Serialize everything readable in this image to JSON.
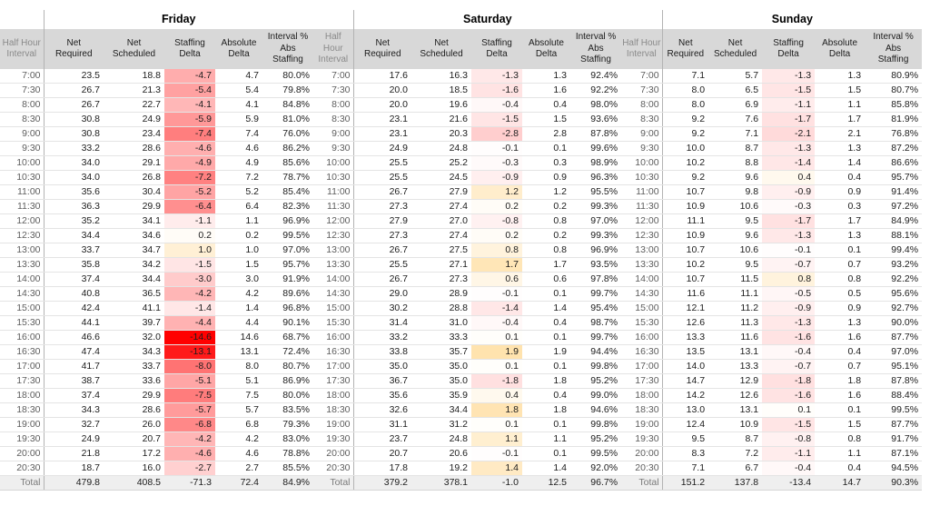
{
  "table": {
    "interval_header_lines": "Half Hour\nInterval",
    "column_header_lines": [
      "Net\nRequired",
      "Net\nScheduled",
      "Staffing\nDelta",
      "Absolute\nDelta",
      "Interval %\nAbs\nStaffing"
    ],
    "column_keys": [
      "net-required",
      "net-scheduled",
      "staffing-delta",
      "absolute-delta",
      "interval-pct-abs-staffing"
    ],
    "days": [
      {
        "name": "Friday",
        "key": "fri",
        "trailing_interval": true
      },
      {
        "name": "Saturday",
        "key": "sat",
        "trailing_interval": true
      },
      {
        "name": "Sunday",
        "key": "sun",
        "trailing_interval": false
      }
    ],
    "total_label": "Total",
    "colors": {
      "delta_negative_max": "#ff0000",
      "delta_positive_max": "#ffa500",
      "header_bg": "#d8d8d8",
      "total_bg": "#efefef",
      "gridline": "#e4e4e4",
      "group_border": "#b3b3b3"
    },
    "delta_scale": {
      "negative_full_at": -14.6,
      "positive_full_at": 6
    },
    "rows": [
      {
        "t": "7:00",
        "fri": [
          "23.5",
          "18.8",
          "-4.7",
          "4.7",
          "80.0%"
        ],
        "sat": [
          "17.6",
          "16.3",
          "-1.3",
          "1.3",
          "92.4%"
        ],
        "sun": [
          "7.1",
          "5.7",
          "-1.3",
          "1.3",
          "80.9%"
        ]
      },
      {
        "t": "7:30",
        "fri": [
          "26.7",
          "21.3",
          "-5.4",
          "5.4",
          "79.8%"
        ],
        "sat": [
          "20.0",
          "18.5",
          "-1.6",
          "1.6",
          "92.2%"
        ],
        "sun": [
          "8.0",
          "6.5",
          "-1.5",
          "1.5",
          "80.7%"
        ]
      },
      {
        "t": "8:00",
        "fri": [
          "26.7",
          "22.7",
          "-4.1",
          "4.1",
          "84.8%"
        ],
        "sat": [
          "20.0",
          "19.6",
          "-0.4",
          "0.4",
          "98.0%"
        ],
        "sun": [
          "8.0",
          "6.9",
          "-1.1",
          "1.1",
          "85.8%"
        ]
      },
      {
        "t": "8:30",
        "fri": [
          "30.8",
          "24.9",
          "-5.9",
          "5.9",
          "81.0%"
        ],
        "sat": [
          "23.1",
          "21.6",
          "-1.5",
          "1.5",
          "93.6%"
        ],
        "sun": [
          "9.2",
          "7.6",
          "-1.7",
          "1.7",
          "81.9%"
        ]
      },
      {
        "t": "9:00",
        "fri": [
          "30.8",
          "23.4",
          "-7.4",
          "7.4",
          "76.0%"
        ],
        "sat": [
          "23.1",
          "20.3",
          "-2.8",
          "2.8",
          "87.8%"
        ],
        "sun": [
          "9.2",
          "7.1",
          "-2.1",
          "2.1",
          "76.8%"
        ]
      },
      {
        "t": "9:30",
        "fri": [
          "33.2",
          "28.6",
          "-4.6",
          "4.6",
          "86.2%"
        ],
        "sat": [
          "24.9",
          "24.8",
          "-0.1",
          "0.1",
          "99.6%"
        ],
        "sun": [
          "10.0",
          "8.7",
          "-1.3",
          "1.3",
          "87.2%"
        ]
      },
      {
        "t": "10:00",
        "fri": [
          "34.0",
          "29.1",
          "-4.9",
          "4.9",
          "85.6%"
        ],
        "sat": [
          "25.5",
          "25.2",
          "-0.3",
          "0.3",
          "98.9%"
        ],
        "sun": [
          "10.2",
          "8.8",
          "-1.4",
          "1.4",
          "86.6%"
        ]
      },
      {
        "t": "10:30",
        "fri": [
          "34.0",
          "26.8",
          "-7.2",
          "7.2",
          "78.7%"
        ],
        "sat": [
          "25.5",
          "24.5",
          "-0.9",
          "0.9",
          "96.3%"
        ],
        "sun": [
          "9.2",
          "9.6",
          "0.4",
          "0.4",
          "95.7%"
        ]
      },
      {
        "t": "11:00",
        "fri": [
          "35.6",
          "30.4",
          "-5.2",
          "5.2",
          "85.4%"
        ],
        "sat": [
          "26.7",
          "27.9",
          "1.2",
          "1.2",
          "95.5%"
        ],
        "sun": [
          "10.7",
          "9.8",
          "-0.9",
          "0.9",
          "91.4%"
        ]
      },
      {
        "t": "11:30",
        "fri": [
          "36.3",
          "29.9",
          "-6.4",
          "6.4",
          "82.3%"
        ],
        "sat": [
          "27.3",
          "27.4",
          "0.2",
          "0.2",
          "99.3%"
        ],
        "sun": [
          "10.9",
          "10.6",
          "-0.3",
          "0.3",
          "97.2%"
        ]
      },
      {
        "t": "12:00",
        "fri": [
          "35.2",
          "34.1",
          "-1.1",
          "1.1",
          "96.9%"
        ],
        "sat": [
          "27.9",
          "27.0",
          "-0.8",
          "0.8",
          "97.0%"
        ],
        "sun": [
          "11.1",
          "9.5",
          "-1.7",
          "1.7",
          "84.9%"
        ]
      },
      {
        "t": "12:30",
        "fri": [
          "34.4",
          "34.6",
          "0.2",
          "0.2",
          "99.5%"
        ],
        "sat": [
          "27.3",
          "27.4",
          "0.2",
          "0.2",
          "99.3%"
        ],
        "sun": [
          "10.9",
          "9.6",
          "-1.3",
          "1.3",
          "88.1%"
        ]
      },
      {
        "t": "13:00",
        "fri": [
          "33.7",
          "34.7",
          "1.0",
          "1.0",
          "97.0%"
        ],
        "sat": [
          "26.7",
          "27.5",
          "0.8",
          "0.8",
          "96.9%"
        ],
        "sun": [
          "10.7",
          "10.6",
          "-0.1",
          "0.1",
          "99.4%"
        ]
      },
      {
        "t": "13:30",
        "fri": [
          "35.8",
          "34.2",
          "-1.5",
          "1.5",
          "95.7%"
        ],
        "sat": [
          "25.5",
          "27.1",
          "1.7",
          "1.7",
          "93.5%"
        ],
        "sun": [
          "10.2",
          "9.5",
          "-0.7",
          "0.7",
          "93.2%"
        ]
      },
      {
        "t": "14:00",
        "fri": [
          "37.4",
          "34.4",
          "-3.0",
          "3.0",
          "91.9%"
        ],
        "sat": [
          "26.7",
          "27.3",
          "0.6",
          "0.6",
          "97.8%"
        ],
        "sun": [
          "10.7",
          "11.5",
          "0.8",
          "0.8",
          "92.2%"
        ]
      },
      {
        "t": "14:30",
        "fri": [
          "40.8",
          "36.5",
          "-4.2",
          "4.2",
          "89.6%"
        ],
        "sat": [
          "29.0",
          "28.9",
          "-0.1",
          "0.1",
          "99.7%"
        ],
        "sun": [
          "11.6",
          "11.1",
          "-0.5",
          "0.5",
          "95.6%"
        ]
      },
      {
        "t": "15:00",
        "fri": [
          "42.4",
          "41.1",
          "-1.4",
          "1.4",
          "96.8%"
        ],
        "sat": [
          "30.2",
          "28.8",
          "-1.4",
          "1.4",
          "95.4%"
        ],
        "sun": [
          "12.1",
          "11.2",
          "-0.9",
          "0.9",
          "92.7%"
        ]
      },
      {
        "t": "15:30",
        "fri": [
          "44.1",
          "39.7",
          "-4.4",
          "4.4",
          "90.1%"
        ],
        "sat": [
          "31.4",
          "31.0",
          "-0.4",
          "0.4",
          "98.7%"
        ],
        "sun": [
          "12.6",
          "11.3",
          "-1.3",
          "1.3",
          "90.0%"
        ]
      },
      {
        "t": "16:00",
        "fri": [
          "46.6",
          "32.0",
          "-14.6",
          "14.6",
          "68.7%"
        ],
        "sat": [
          "33.2",
          "33.3",
          "0.1",
          "0.1",
          "99.7%"
        ],
        "sun": [
          "13.3",
          "11.6",
          "-1.6",
          "1.6",
          "87.7%"
        ]
      },
      {
        "t": "16:30",
        "fri": [
          "47.4",
          "34.3",
          "-13.1",
          "13.1",
          "72.4%"
        ],
        "sat": [
          "33.8",
          "35.7",
          "1.9",
          "1.9",
          "94.4%"
        ],
        "sun": [
          "13.5",
          "13.1",
          "-0.4",
          "0.4",
          "97.0%"
        ]
      },
      {
        "t": "17:00",
        "fri": [
          "41.7",
          "33.7",
          "-8.0",
          "8.0",
          "80.7%"
        ],
        "sat": [
          "35.0",
          "35.0",
          "0.1",
          "0.1",
          "99.8%"
        ],
        "sun": [
          "14.0",
          "13.3",
          "-0.7",
          "0.7",
          "95.1%"
        ]
      },
      {
        "t": "17:30",
        "fri": [
          "38.7",
          "33.6",
          "-5.1",
          "5.1",
          "86.9%"
        ],
        "sat": [
          "36.7",
          "35.0",
          "-1.8",
          "1.8",
          "95.2%"
        ],
        "sun": [
          "14.7",
          "12.9",
          "-1.8",
          "1.8",
          "87.8%"
        ]
      },
      {
        "t": "18:00",
        "fri": [
          "37.4",
          "29.9",
          "-7.5",
          "7.5",
          "80.0%"
        ],
        "sat": [
          "35.6",
          "35.9",
          "0.4",
          "0.4",
          "99.0%"
        ],
        "sun": [
          "14.2",
          "12.6",
          "-1.6",
          "1.6",
          "88.4%"
        ]
      },
      {
        "t": "18:30",
        "fri": [
          "34.3",
          "28.6",
          "-5.7",
          "5.7",
          "83.5%"
        ],
        "sat": [
          "32.6",
          "34.4",
          "1.8",
          "1.8",
          "94.6%"
        ],
        "sun": [
          "13.0",
          "13.1",
          "0.1",
          "0.1",
          "99.5%"
        ]
      },
      {
        "t": "19:00",
        "fri": [
          "32.7",
          "26.0",
          "-6.8",
          "6.8",
          "79.3%"
        ],
        "sat": [
          "31.1",
          "31.2",
          "0.1",
          "0.1",
          "99.8%"
        ],
        "sun": [
          "12.4",
          "10.9",
          "-1.5",
          "1.5",
          "87.7%"
        ]
      },
      {
        "t": "19:30",
        "fri": [
          "24.9",
          "20.7",
          "-4.2",
          "4.2",
          "83.0%"
        ],
        "sat": [
          "23.7",
          "24.8",
          "1.1",
          "1.1",
          "95.2%"
        ],
        "sun": [
          "9.5",
          "8.7",
          "-0.8",
          "0.8",
          "91.7%"
        ]
      },
      {
        "t": "20:00",
        "fri": [
          "21.8",
          "17.2",
          "-4.6",
          "4.6",
          "78.8%"
        ],
        "sat": [
          "20.7",
          "20.6",
          "-0.1",
          "0.1",
          "99.5%"
        ],
        "sun": [
          "8.3",
          "7.2",
          "-1.1",
          "1.1",
          "87.1%"
        ]
      },
      {
        "t": "20:30",
        "fri": [
          "18.7",
          "16.0",
          "-2.7",
          "2.7",
          "85.5%"
        ],
        "sat": [
          "17.8",
          "19.2",
          "1.4",
          "1.4",
          "92.0%"
        ],
        "sun": [
          "7.1",
          "6.7",
          "-0.4",
          "0.4",
          "94.5%"
        ]
      }
    ],
    "totals": {
      "t": "Total",
      "fri": [
        "479.8",
        "408.5",
        "-71.3",
        "72.4",
        "84.9%"
      ],
      "sat": [
        "379.2",
        "378.1",
        "-1.0",
        "12.5",
        "96.7%"
      ],
      "sun": [
        "151.2",
        "137.8",
        "-13.4",
        "14.7",
        "90.3%"
      ]
    }
  }
}
